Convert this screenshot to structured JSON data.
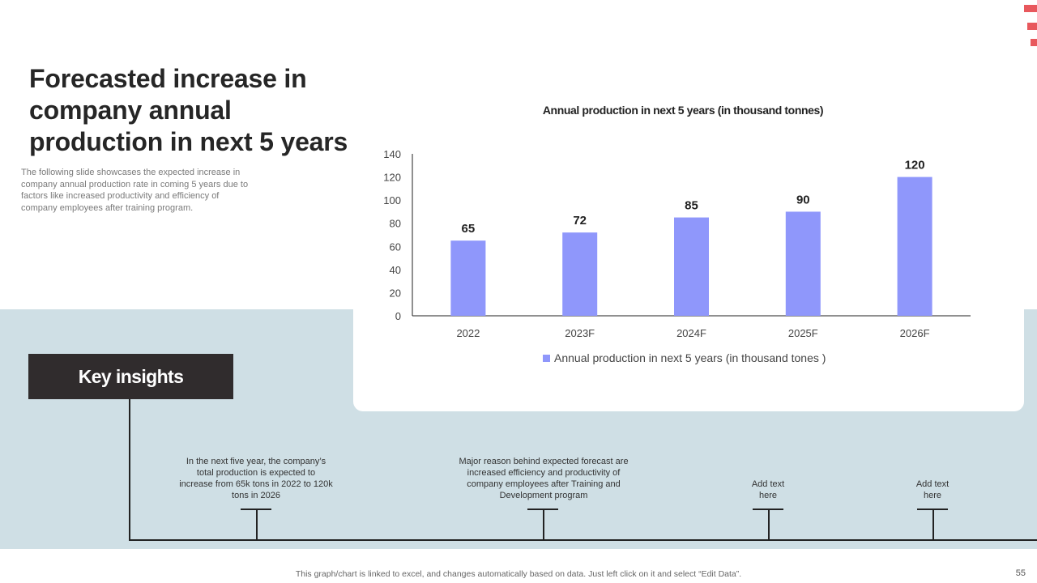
{
  "slide": {
    "title": "Forecasted increase in company annual production in next 5 years",
    "subtitle": "The following slide showcases the expected increase in company annual production rate in coming 5 years due to factors like increased productivity and efficiency of company employees after training program.",
    "accent_color": "#e8585d",
    "band_color": "#cfdfe5",
    "page_number": "55",
    "footer_note": "This graph/chart is linked to excel,  and changes automatically based on data. Just left click on it and select “Edit Data”."
  },
  "key_insights": {
    "label": "Key insights",
    "items": [
      "In the next five year, the company’s total production is expected to increase from 65k tons in 2022 to 120k tons in 2026",
      "Major reason behind expected forecast are increased efficiency and productivity of company employees after Training and Development program",
      "Add text here",
      "Add text here"
    ]
  },
  "chart_data": {
    "type": "bar",
    "title": "Annual production in next 5 years (in thousand tonnes)",
    "categories": [
      "2022",
      "2023F",
      "2024F",
      "2025F",
      "2026F"
    ],
    "series": [
      {
        "name": "Annual production in next 5 years (in thousand tones )",
        "values": [
          65,
          72,
          85,
          90,
          120
        ],
        "color": "#8f97fb"
      }
    ],
    "ylim": [
      0,
      140
    ],
    "yticks": [
      0,
      20,
      40,
      60,
      80,
      100,
      120,
      140
    ],
    "xlabel": "",
    "ylabel": "",
    "grid": false,
    "legend": "bottom"
  }
}
